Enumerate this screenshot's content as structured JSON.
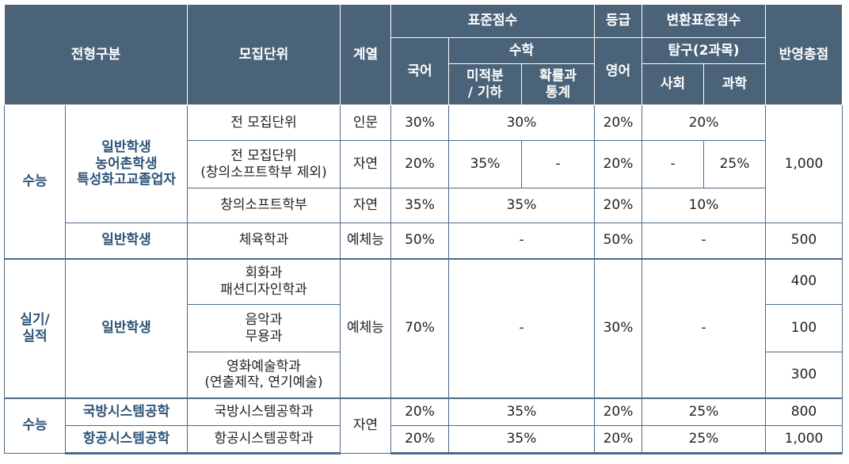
{
  "headers": {
    "type": "전형구분",
    "unit": "모집단위",
    "track": "계열",
    "std_score": "표준점수",
    "grade": "등급",
    "conv_score": "변환표준점수",
    "korean": "국어",
    "math": "수학",
    "english": "영어",
    "inquiry": "탐구(2과목)",
    "total": "반영총점",
    "calc_line1": "미적분",
    "calc_line2": "/ 기하",
    "prob_line1": "확률과",
    "prob_line2": "통계",
    "social": "사회",
    "science": "과학"
  },
  "rows": {
    "suneung": "수능",
    "group1": [
      "일반학생",
      "농어촌학생",
      "특성화고교졸업자"
    ],
    "all_units": "전 모집단위",
    "all_units_excl": [
      "전 모집단위",
      "(창의소프트학부 제외)"
    ],
    "soft": "창의소프트학부",
    "general": "일반학생",
    "pe": "체육학과",
    "humanities": "인문",
    "natural": "자연",
    "arts_pe": "예체능",
    "practical": [
      "실기/",
      "실적"
    ],
    "painting": [
      "회화과",
      "패션디자인학과"
    ],
    "music": [
      "음악과",
      "무용과"
    ],
    "film": [
      "영화예술학과",
      "(연출제작, 연기예술)"
    ],
    "defense_cat": "국방시스템공학",
    "defense_unit": "국방시스템공학과",
    "aero_cat": "항공시스템공학",
    "aero_unit": "항공시스템공학과"
  },
  "values": {
    "p30": "30%",
    "p20": "20%",
    "p35": "35%",
    "p25": "25%",
    "p10": "10%",
    "p50": "50%",
    "p70": "70%",
    "dash": "-",
    "t1000": "1,000",
    "t500": "500",
    "t400": "400",
    "t100": "100",
    "t300": "300",
    "t800": "800"
  }
}
